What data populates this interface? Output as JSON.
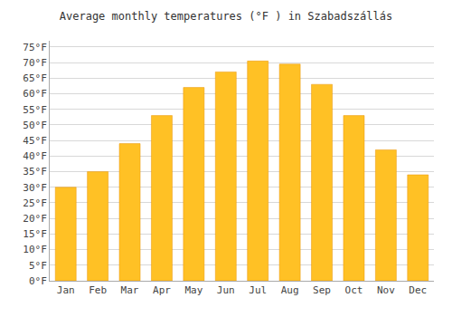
{
  "chart_data": {
    "type": "bar",
    "title": "Average monthly temperatures (°F ) in Szabadszállás",
    "categories": [
      "Jan",
      "Feb",
      "Mar",
      "Apr",
      "May",
      "Jun",
      "Jul",
      "Aug",
      "Sep",
      "Oct",
      "Nov",
      "Dec"
    ],
    "values": [
      30,
      35,
      44,
      53,
      62,
      67,
      70.5,
      69.5,
      63,
      53,
      42,
      34
    ],
    "color": "#FFC125",
    "ylim": [
      0,
      77
    ],
    "yticks": [
      {
        "value": 0,
        "label": "0°F"
      },
      {
        "value": 5,
        "label": "5°F"
      },
      {
        "value": 10,
        "label": "10°F"
      },
      {
        "value": 15,
        "label": "15°F"
      },
      {
        "value": 20,
        "label": "20°F"
      },
      {
        "value": 25,
        "label": "25°F"
      },
      {
        "value": 30,
        "label": "30°F"
      },
      {
        "value": 35,
        "label": "35°F"
      },
      {
        "value": 40,
        "label": "40°F"
      },
      {
        "value": 45,
        "label": "45°F"
      },
      {
        "value": 50,
        "label": "50°F"
      },
      {
        "value": 55,
        "label": "55°F"
      },
      {
        "value": 60,
        "label": "60°F"
      },
      {
        "value": 65,
        "label": "65°F"
      },
      {
        "value": 70,
        "label": "70°F"
      },
      {
        "value": 75,
        "label": "75°F"
      }
    ],
    "grid": true
  }
}
